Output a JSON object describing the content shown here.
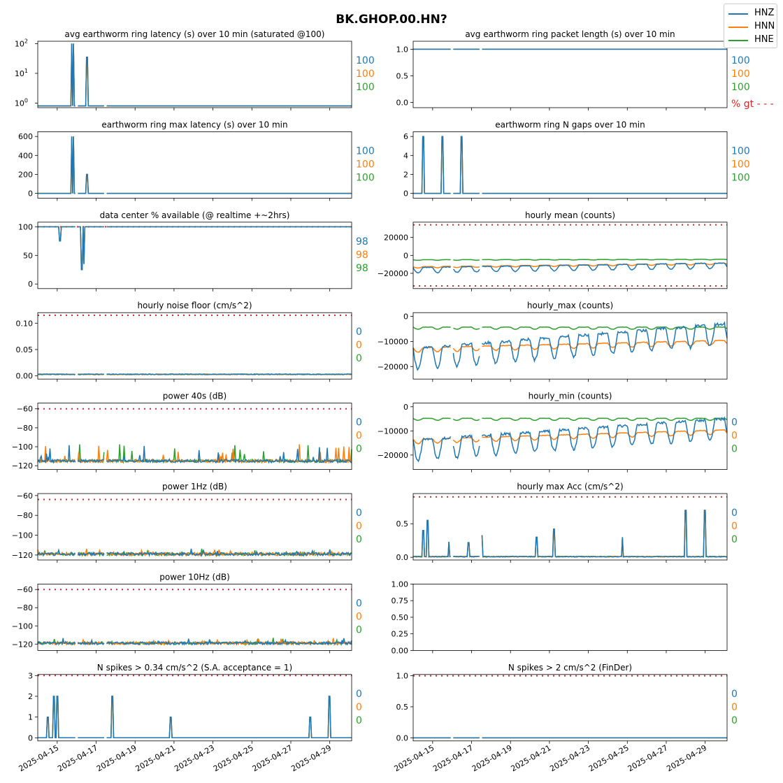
{
  "figure_title": "BK.GHOP.00.HN?",
  "legend": [
    {
      "name": "HNZ",
      "color": "#1f77b4"
    },
    {
      "name": "HNN",
      "color": "#ff7f0e"
    },
    {
      "name": "HNE",
      "color": "#2ca02c"
    }
  ],
  "threshold_color": "#d62728",
  "date_ticks": [
    "2025-04-15",
    "2025-04-17",
    "2025-04-19",
    "2025-04-21",
    "2025-04-23",
    "2025-04-25",
    "2025-04-27",
    "2025-04-29"
  ],
  "chart_data": [
    {
      "id": "p0",
      "type": "line",
      "title": "avg earthworm ring latency (s)   over 10 min (saturated @100)",
      "xlim": [
        "2025-04-14",
        "2025-04-30"
      ],
      "yscale": "log",
      "ylim": [
        0.7,
        120
      ],
      "yticks": [
        1,
        10,
        100
      ],
      "ytick_labels": [
        "10^0",
        "10^1",
        "10^2"
      ],
      "stats": [
        "100",
        "100",
        "100"
      ],
      "spikes": [
        {
          "x": "2025-04-15T18:00",
          "value": 100
        },
        {
          "x": "2025-04-15T20:00",
          "value": 100
        },
        {
          "x": "2025-04-16T13:00",
          "value": 35
        }
      ],
      "baseline": 0.8
    },
    {
      "id": "p1",
      "type": "line",
      "title": "avg earthworm ring packet length (s)   over 10 min",
      "xlim": [
        "2025-04-14",
        "2025-04-30"
      ],
      "ylim": [
        -0.1,
        1.15
      ],
      "yticks": [
        0,
        0.5,
        1
      ],
      "ytick_labels": [
        "0.0",
        "0.5",
        "1.0"
      ],
      "stats": [
        "100",
        "100",
        "100"
      ],
      "extra_label": "% gt - - -",
      "baseline": 1.0
    },
    {
      "id": "p2",
      "type": "line",
      "title": "earthworm ring max latency (s)   over 10 min",
      "xlim": [
        "2025-04-14",
        "2025-04-30"
      ],
      "ylim": [
        -50,
        650
      ],
      "yticks": [
        0,
        200,
        400,
        600
      ],
      "ytick_labels": [
        "0",
        "200",
        "400",
        "600"
      ],
      "stats": [
        "100",
        "100",
        "100"
      ],
      "spikes": [
        {
          "x": "2025-04-15T18:00",
          "value": 600
        },
        {
          "x": "2025-04-15T20:00",
          "value": 600
        },
        {
          "x": "2025-04-16T13:00",
          "value": 200
        }
      ],
      "baseline": 0
    },
    {
      "id": "p3",
      "type": "line",
      "title": "earthworm ring N gaps   over 10 min",
      "xlim": [
        "2025-04-14",
        "2025-04-30"
      ],
      "ylim": [
        -0.5,
        6.5
      ],
      "yticks": [
        0,
        2,
        4,
        6
      ],
      "ytick_labels": [
        "0",
        "2",
        "4",
        "6"
      ],
      "stats": [
        "100",
        "100",
        "100"
      ],
      "spikes": [
        {
          "x": "2025-04-14T12:00",
          "value": 6
        },
        {
          "x": "2025-04-15T12:00",
          "value": 6
        },
        {
          "x": "2025-04-16T12:00",
          "value": 6
        }
      ],
      "baseline": 0
    },
    {
      "id": "p4",
      "type": "line",
      "title": "data center % available (@ realtime +~2hrs)",
      "xlim": [
        "2025-04-14",
        "2025-04-30"
      ],
      "ylim": [
        -8,
        108
      ],
      "yticks": [
        0,
        50,
        100
      ],
      "ytick_labels": [
        "0",
        "50",
        "100"
      ],
      "threshold": 100,
      "stats": [
        "98",
        "98",
        "98"
      ],
      "dips": [
        {
          "x": "2025-04-15T03:00",
          "value": 75
        },
        {
          "x": "2025-04-16T00:00",
          "value": 25
        },
        {
          "x": "2025-04-16T06:00",
          "value": 25
        },
        {
          "x": "2025-04-16T09:00",
          "value": 35
        }
      ],
      "baseline": 100
    },
    {
      "id": "p5",
      "type": "line",
      "title": "hourly mean (counts)",
      "xlim": [
        "2025-04-14",
        "2025-04-30"
      ],
      "ylim": [
        -37000,
        37000
      ],
      "yticks": [
        -20000,
        0,
        20000
      ],
      "ytick_labels": [
        "−20000",
        "0",
        "20000"
      ],
      "thresholds": [
        34000,
        -34000
      ],
      "stats": [],
      "series_levels": {
        "HNZ": {
          "start": -15000,
          "end": -10000,
          "amp": 5000
        },
        "HNN": {
          "start": -13000,
          "end": -9000,
          "amp": 1200
        },
        "HNE": {
          "start": -5000,
          "end": -4500,
          "amp": 500
        }
      }
    },
    {
      "id": "p6",
      "type": "line",
      "title": "hourly noise floor (cm/s^2)",
      "xlim": [
        "2025-04-14",
        "2025-04-30"
      ],
      "ylim": [
        -0.006,
        0.12
      ],
      "yticks": [
        0,
        0.05,
        0.1
      ],
      "ytick_labels": [
        "0.00",
        "0.05",
        "0.10"
      ],
      "threshold": 0.115,
      "stats": [
        "0",
        "0",
        "0"
      ],
      "baseline": 0.003
    },
    {
      "id": "p7",
      "type": "line",
      "title": "hourly_max (counts)",
      "xlim": [
        "2025-04-14",
        "2025-04-30"
      ],
      "ylim": [
        -25000,
        1500
      ],
      "yticks": [
        -20000,
        -10000,
        0
      ],
      "ytick_labels": [
        "−20000",
        "−10000",
        "0"
      ],
      "stats": [],
      "series_levels": {
        "HNZ": {
          "start": -15000,
          "end": -5000,
          "amp": 7000
        },
        "HNN": {
          "start": -13000,
          "end": -10000,
          "amp": 1500
        },
        "HNE": {
          "start": -4500,
          "end": -4500,
          "amp": 700
        }
      }
    },
    {
      "id": "p8",
      "type": "line",
      "title": "power 40s (dB)",
      "xlim": [
        "2025-04-14",
        "2025-04-30"
      ],
      "ylim": [
        -124,
        -54
      ],
      "yticks": [
        -120,
        -100,
        -80,
        -60
      ],
      "ytick_labels": [
        "−120",
        "−100",
        "−80",
        "−60"
      ],
      "threshold": -60,
      "stats": [
        "0",
        "0",
        "0"
      ],
      "baseline": -115
    },
    {
      "id": "p9",
      "type": "line",
      "title": "hourly_min (counts)",
      "xlim": [
        "2025-04-14",
        "2025-04-30"
      ],
      "ylim": [
        -26000,
        1500
      ],
      "yticks": [
        -20000,
        -10000,
        0
      ],
      "ytick_labels": [
        "−20000",
        "−10000",
        "0"
      ],
      "stats": [
        "0",
        "0",
        "0"
      ],
      "series_levels": {
        "HNZ": {
          "start": -16000,
          "end": -7000,
          "amp": 7000
        },
        "HNN": {
          "start": -14000,
          "end": -10000,
          "amp": 1500
        },
        "HNE": {
          "start": -5000,
          "end": -5000,
          "amp": 700
        }
      }
    },
    {
      "id": "p10",
      "type": "line",
      "title": "power 1Hz (dB)",
      "xlim": [
        "2025-04-14",
        "2025-04-30"
      ],
      "ylim": [
        -125,
        -58
      ],
      "yticks": [
        -120,
        -100,
        -80,
        -60
      ],
      "ytick_labels": [
        "−120",
        "−100",
        "−80",
        "−60"
      ],
      "threshold": -64,
      "stats": [
        "0",
        "0",
        "0"
      ],
      "baseline": -119
    },
    {
      "id": "p11",
      "type": "line",
      "title": "hourly max Acc (cm/s^2)",
      "xlim": [
        "2025-04-14",
        "2025-04-30"
      ],
      "ylim": [
        -0.04,
        0.95
      ],
      "yticks": [
        0,
        0.5
      ],
      "ytick_labels": [
        "0.0",
        "0.5"
      ],
      "threshold": 0.9,
      "stats": [
        "0",
        "0",
        "0"
      ],
      "baseline": 0.01,
      "spikes": [
        {
          "x": "2025-04-14T12:00",
          "value": 0.4
        },
        {
          "x": "2025-04-14T18:00",
          "value": 0.55
        },
        {
          "x": "2025-04-15T20:00",
          "value": 0.23
        },
        {
          "x": "2025-04-16T20:00",
          "value": 0.22
        },
        {
          "x": "2025-04-17T12:00",
          "value": 0.33
        },
        {
          "x": "2025-04-20T08:00",
          "value": 0.3
        },
        {
          "x": "2025-04-21T06:00",
          "value": 0.42
        },
        {
          "x": "2025-04-24T18:00",
          "value": 0.3
        },
        {
          "x": "2025-04-28T00:00",
          "value": 0.7
        },
        {
          "x": "2025-04-29T00:00",
          "value": 0.7
        }
      ]
    },
    {
      "id": "p12",
      "type": "line",
      "title": "power 10Hz (dB)",
      "xlim": [
        "2025-04-14",
        "2025-04-30"
      ],
      "ylim": [
        -127,
        -54
      ],
      "yticks": [
        -120,
        -100,
        -80,
        -60
      ],
      "ytick_labels": [
        "−120",
        "−100",
        "−80",
        "−60"
      ],
      "threshold": -60,
      "stats": [
        "0",
        "0",
        "0"
      ],
      "baseline": -119
    },
    {
      "id": "p13",
      "type": "empty",
      "title": "",
      "ylim": [
        0,
        1
      ],
      "yticks": [
        0,
        0.25,
        0.5,
        0.75,
        1
      ],
      "ytick_labels": [
        "0.00",
        "0.25",
        "0.50",
        "0.75",
        "1.00"
      ],
      "stats": []
    },
    {
      "id": "p14",
      "type": "line",
      "title": "N spikes > 0.34 cm/s^2 (S.A. acceptance = 1)",
      "xlim": [
        "2025-04-14",
        "2025-04-30"
      ],
      "ylim": [
        -0.15,
        3.05
      ],
      "yticks": [
        0,
        1,
        2,
        3
      ],
      "ytick_labels": [
        "0",
        "1",
        "2",
        "3"
      ],
      "threshold": 3,
      "stats": [
        "0",
        "0",
        "0"
      ],
      "baseline": 0,
      "spikes": [
        {
          "x": "2025-04-14T12:00",
          "value": 1
        },
        {
          "x": "2025-04-14T20:00",
          "value": 2
        },
        {
          "x": "2025-04-15T00:00",
          "value": 2
        },
        {
          "x": "2025-04-17T20:00",
          "value": 2
        },
        {
          "x": "2025-04-20T20:00",
          "value": 1
        },
        {
          "x": "2025-04-28T00:00",
          "value": 1
        },
        {
          "x": "2025-04-29T00:00",
          "value": 2
        }
      ]
    },
    {
      "id": "p15",
      "type": "line",
      "title": "N spikes > 2 cm/s^2 (FinDer)",
      "xlim": [
        "2025-04-14",
        "2025-04-30"
      ],
      "ylim": [
        -0.05,
        1.02
      ],
      "yticks": [
        0,
        0.5,
        1
      ],
      "ytick_labels": [
        "0.0",
        "0.5",
        "1.0"
      ],
      "threshold": 1,
      "stats": [
        "0",
        "0",
        "0"
      ],
      "baseline": 0
    }
  ]
}
